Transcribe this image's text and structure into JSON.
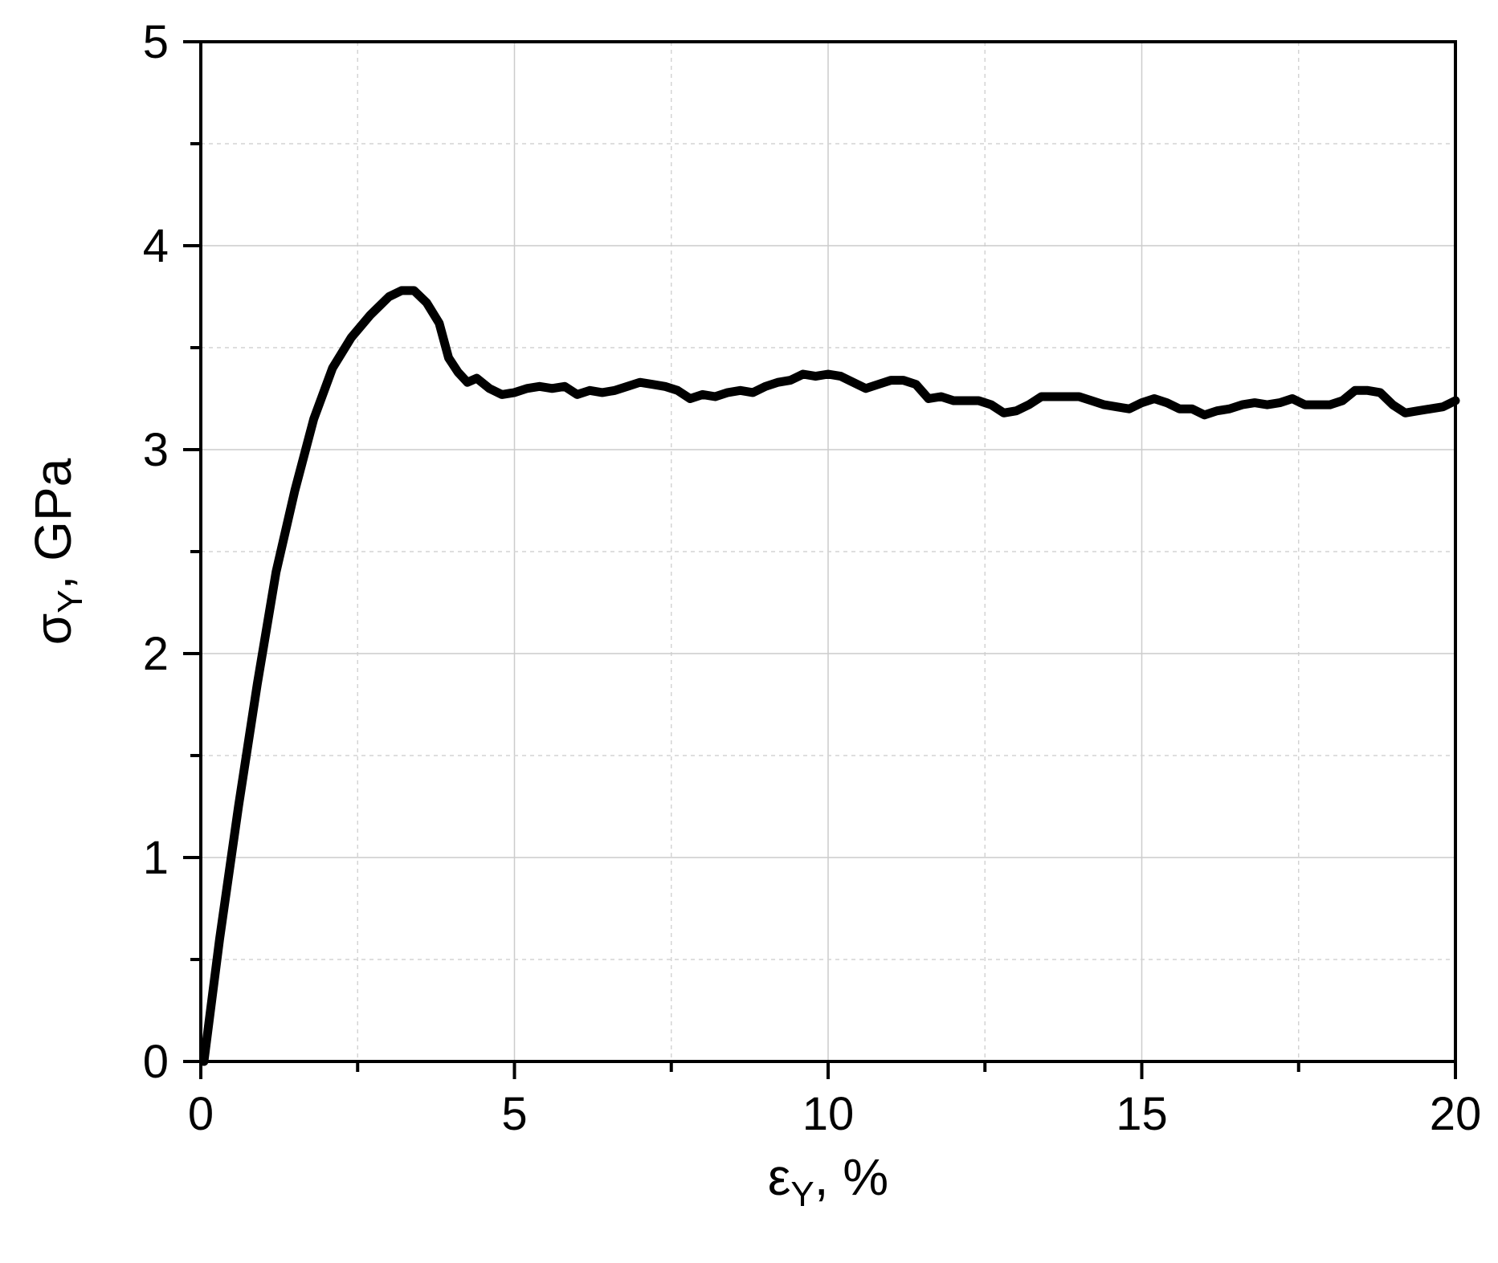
{
  "chart_data": {
    "type": "line",
    "title": "",
    "xlabel": {
      "main": "ε",
      "sub": "Y",
      "rest": ", %"
    },
    "ylabel": {
      "main": "σ",
      "sub": "Y",
      "rest": ", GPa"
    },
    "xlim": [
      0,
      20
    ],
    "ylim": [
      0,
      5
    ],
    "xticks": [
      0,
      5,
      10,
      15,
      20
    ],
    "xtick_labels": [
      "0",
      "5",
      "10",
      "15",
      "20"
    ],
    "yticks": [
      0,
      1,
      2,
      3,
      4,
      5
    ],
    "ytick_labels": [
      "0",
      "1",
      "2",
      "3",
      "4",
      "5"
    ],
    "minor_x_step": 2.5,
    "minor_y_step": 0.5,
    "grid": true,
    "legend": "none",
    "series": [
      {
        "color": "#000000",
        "points": [
          [
            0.05,
            0.0
          ],
          [
            0.3,
            0.6
          ],
          [
            0.6,
            1.25
          ],
          [
            0.9,
            1.85
          ],
          [
            1.2,
            2.4
          ],
          [
            1.5,
            2.8
          ],
          [
            1.8,
            3.15
          ],
          [
            2.1,
            3.4
          ],
          [
            2.4,
            3.55
          ],
          [
            2.7,
            3.66
          ],
          [
            3.0,
            3.75
          ],
          [
            3.2,
            3.78
          ],
          [
            3.4,
            3.78
          ],
          [
            3.6,
            3.72
          ],
          [
            3.8,
            3.62
          ],
          [
            3.95,
            3.45
          ],
          [
            4.1,
            3.38
          ],
          [
            4.25,
            3.33
          ],
          [
            4.4,
            3.35
          ],
          [
            4.6,
            3.3
          ],
          [
            4.8,
            3.27
          ],
          [
            5.0,
            3.28
          ],
          [
            5.2,
            3.3
          ],
          [
            5.4,
            3.31
          ],
          [
            5.6,
            3.3
          ],
          [
            5.8,
            3.31
          ],
          [
            6.0,
            3.27
          ],
          [
            6.2,
            3.29
          ],
          [
            6.4,
            3.28
          ],
          [
            6.6,
            3.29
          ],
          [
            6.8,
            3.31
          ],
          [
            7.0,
            3.33
          ],
          [
            7.2,
            3.32
          ],
          [
            7.4,
            3.31
          ],
          [
            7.6,
            3.29
          ],
          [
            7.8,
            3.25
          ],
          [
            8.0,
            3.27
          ],
          [
            8.2,
            3.26
          ],
          [
            8.4,
            3.28
          ],
          [
            8.6,
            3.29
          ],
          [
            8.8,
            3.28
          ],
          [
            9.0,
            3.31
          ],
          [
            9.2,
            3.33
          ],
          [
            9.4,
            3.34
          ],
          [
            9.6,
            3.37
          ],
          [
            9.8,
            3.36
          ],
          [
            10.0,
            3.37
          ],
          [
            10.2,
            3.36
          ],
          [
            10.4,
            3.33
          ],
          [
            10.6,
            3.3
          ],
          [
            10.8,
            3.32
          ],
          [
            11.0,
            3.34
          ],
          [
            11.2,
            3.34
          ],
          [
            11.4,
            3.32
          ],
          [
            11.6,
            3.25
          ],
          [
            11.8,
            3.26
          ],
          [
            12.0,
            3.24
          ],
          [
            12.2,
            3.24
          ],
          [
            12.4,
            3.24
          ],
          [
            12.6,
            3.22
          ],
          [
            12.8,
            3.18
          ],
          [
            13.0,
            3.19
          ],
          [
            13.2,
            3.22
          ],
          [
            13.4,
            3.26
          ],
          [
            13.6,
            3.26
          ],
          [
            13.8,
            3.26
          ],
          [
            14.0,
            3.26
          ],
          [
            14.2,
            3.24
          ],
          [
            14.4,
            3.22
          ],
          [
            14.6,
            3.21
          ],
          [
            14.8,
            3.2
          ],
          [
            15.0,
            3.23
          ],
          [
            15.2,
            3.25
          ],
          [
            15.4,
            3.23
          ],
          [
            15.6,
            3.2
          ],
          [
            15.8,
            3.2
          ],
          [
            16.0,
            3.17
          ],
          [
            16.2,
            3.19
          ],
          [
            16.4,
            3.2
          ],
          [
            16.6,
            3.22
          ],
          [
            16.8,
            3.23
          ],
          [
            17.0,
            3.22
          ],
          [
            17.2,
            3.23
          ],
          [
            17.4,
            3.25
          ],
          [
            17.6,
            3.22
          ],
          [
            17.8,
            3.22
          ],
          [
            18.0,
            3.22
          ],
          [
            18.2,
            3.24
          ],
          [
            18.4,
            3.29
          ],
          [
            18.6,
            3.29
          ],
          [
            18.8,
            3.28
          ],
          [
            19.0,
            3.22
          ],
          [
            19.2,
            3.18
          ],
          [
            19.4,
            3.19
          ],
          [
            19.6,
            3.2
          ],
          [
            19.8,
            3.21
          ],
          [
            20.0,
            3.24
          ]
        ]
      }
    ]
  }
}
